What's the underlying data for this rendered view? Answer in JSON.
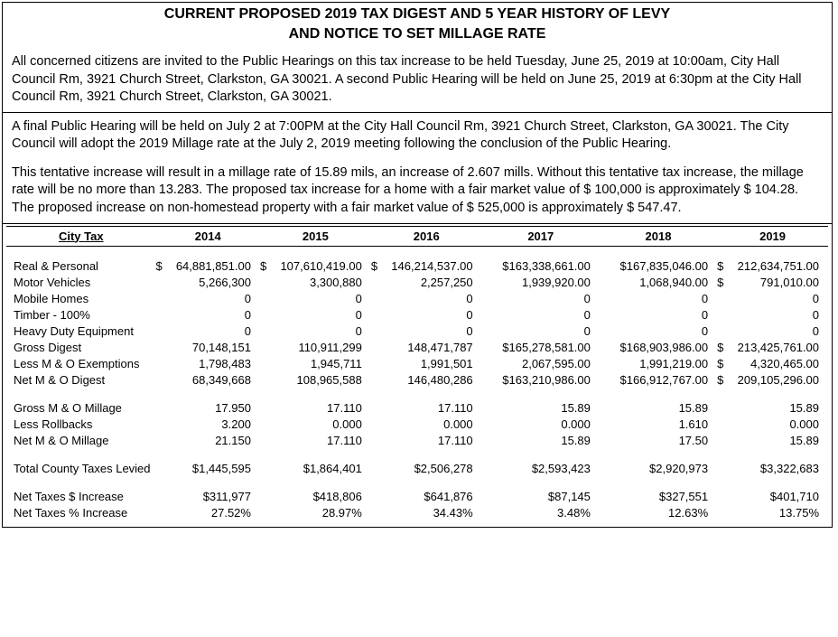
{
  "title_line1": "CURRENT PROPOSED 2019 TAX DIGEST AND 5 YEAR HISTORY OF LEVY",
  "title_line2": "AND NOTICE TO SET MILLAGE RATE",
  "paragraph1": "All concerned citizens are invited to the Public Hearings on this tax increase to be held Tuesday, June 25, 2019 at 10:00am, City Hall Council Rm, 3921 Church Street, Clarkston, GA 30021.  A second Public Hearing will be held on June 25, 2019 at 6:30pm at the City Hall Council Rm, 3921 Church Street, Clarkston, GA 30021.",
  "paragraph2": "A final Public Hearing will be held on July 2 at 7:00PM at the City Hall Council Rm, 3921 Church Street, Clarkston, GA 30021. The City Council will adopt the 2019 Millage rate at the July 2, 2019 meeting following the conclusion of the Public Hearing.",
  "paragraph3": "This tentative increase will result in a millage rate of 15.89 mils, an increase of 2.607 mills.  Without this tentative tax increase, the millage rate will be no more than 13.283.  The proposed tax increase for a home with a fair market value of $ 100,000 is approximately $ 104.28.  The proposed increase on non-homestead property with a fair market value of $ 525,000 is approximately $ 547.47.",
  "table": {
    "header_label": "City Tax",
    "years": [
      "2014",
      "2015",
      "2016",
      "2017",
      "2018",
      "2019"
    ],
    "rows": [
      {
        "label": "Real & Personal",
        "d0": "$",
        "v0": "64,881,851.00",
        "d1": "$",
        "v1": "107,610,419.00",
        "d2": "$",
        "v2": "146,214,537.00",
        "d3": "",
        "v3": "$163,338,661.00",
        "d4": "",
        "v4": "$167,835,046.00",
        "d5": "$",
        "v5": "212,634,751.00"
      },
      {
        "label": "Motor Vehicles",
        "d0": "",
        "v0": "5,266,300",
        "d1": "",
        "v1": "3,300,880",
        "d2": "",
        "v2": "2,257,250",
        "d3": "",
        "v3": "1,939,920.00",
        "d4": "",
        "v4": "1,068,940.00",
        "d5": "$",
        "v5": "791,010.00"
      },
      {
        "label": "Mobile Homes",
        "d0": "",
        "v0": "0",
        "d1": "",
        "v1": "0",
        "d2": "",
        "v2": "0",
        "d3": "",
        "v3": "0",
        "d4": "",
        "v4": "0",
        "d5": "",
        "v5": "0"
      },
      {
        "label": "Timber - 100%",
        "d0": "",
        "v0": "0",
        "d1": "",
        "v1": "0",
        "d2": "",
        "v2": "0",
        "d3": "",
        "v3": "0",
        "d4": "",
        "v4": "0",
        "d5": "",
        "v5": "0"
      },
      {
        "label": "Heavy Duty Equipment",
        "d0": "",
        "v0": "0",
        "d1": "",
        "v1": "0",
        "d2": "",
        "v2": "0",
        "d3": "",
        "v3": "0",
        "d4": "",
        "v4": "0",
        "d5": "",
        "v5": "0"
      },
      {
        "label": "Gross Digest",
        "d0": "",
        "v0": "70,148,151",
        "d1": "",
        "v1": "110,911,299",
        "d2": "",
        "v2": "148,471,787",
        "d3": "",
        "v3": "$165,278,581.00",
        "d4": "",
        "v4": "$168,903,986.00",
        "d5": "$",
        "v5": "213,425,761.00"
      },
      {
        "label": "Less M & O Exemptions",
        "d0": "",
        "v0": "1,798,483",
        "d1": "",
        "v1": "1,945,711",
        "d2": "",
        "v2": "1,991,501",
        "d3": "",
        "v3": "2,067,595.00",
        "d4": "",
        "v4": "1,991,219.00",
        "d5": "$",
        "v5": "4,320,465.00"
      },
      {
        "label": "Net M & O Digest",
        "d0": "",
        "v0": "68,349,668",
        "d1": "",
        "v1": "108,965,588",
        "d2": "",
        "v2": "146,480,286",
        "d3": "",
        "v3": "$163,210,986.00",
        "d4": "",
        "v4": "$166,912,767.00",
        "d5": "$",
        "v5": "209,105,296.00"
      }
    ],
    "rows2": [
      {
        "label": "Gross M & O Millage",
        "v0": "17.950",
        "v1": "17.110",
        "v2": "17.110",
        "v3": "15.89",
        "v4": "15.89",
        "v5": "15.89"
      },
      {
        "label": "Less Rollbacks",
        "v0": "3.200",
        "v1": "0.000",
        "v2": "0.000",
        "v3": "0.000",
        "v4": "1.610",
        "v5": "0.000"
      },
      {
        "label": "Net M & O Millage",
        "v0": "21.150",
        "v1": "17.110",
        "v2": "17.110",
        "v3": "15.89",
        "v4": "17.50",
        "v5": "15.89"
      }
    ],
    "rows3": [
      {
        "label": "Total County Taxes Levied",
        "v0": "$1,445,595",
        "v1": "$1,864,401",
        "v2": "$2,506,278",
        "v3": "$2,593,423",
        "v4": "$2,920,973",
        "v5": "$3,322,683"
      }
    ],
    "rows4": [
      {
        "label": "Net Taxes $ Increase",
        "v0": "$311,977",
        "v1": "$418,806",
        "v2": "$641,876",
        "v3": "$87,145",
        "v4": "$327,551",
        "v5": "$401,710"
      },
      {
        "label": "Net Taxes % Increase",
        "v0": "27.52%",
        "v1": "28.97%",
        "v2": "34.43%",
        "v3": "3.48%",
        "v4": "12.63%",
        "v5": "13.75%"
      }
    ]
  }
}
